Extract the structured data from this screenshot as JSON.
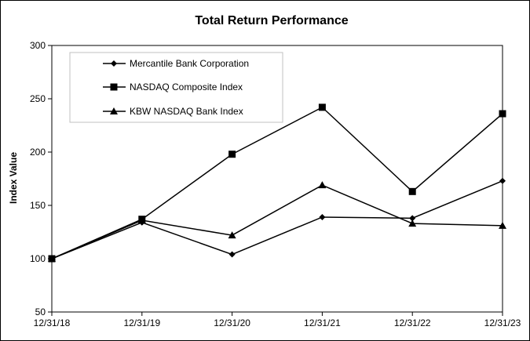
{
  "chart_data": {
    "type": "line",
    "title": "Total Return Performance",
    "xlabel": "",
    "ylabel": "Index Value",
    "categories": [
      "12/31/18",
      "12/31/19",
      "12/31/20",
      "12/31/21",
      "12/31/22",
      "12/31/23"
    ],
    "ylim": [
      50,
      300
    ],
    "yticks": [
      50,
      100,
      150,
      200,
      250,
      300
    ],
    "grid": false,
    "legend_position": "top-left",
    "series": [
      {
        "name": "Mercantile Bank Corporation",
        "marker": "diamond",
        "color": "#000000",
        "values": [
          100,
          134,
          104,
          139,
          138,
          173
        ]
      },
      {
        "name": "NASDAQ Composite Index",
        "marker": "square",
        "color": "#000000",
        "values": [
          100,
          137,
          198,
          242,
          163,
          236
        ]
      },
      {
        "name": "KBW NASDAQ Bank Index",
        "marker": "triangle",
        "color": "#000000",
        "values": [
          100,
          136,
          122,
          169,
          133,
          131
        ]
      }
    ]
  }
}
